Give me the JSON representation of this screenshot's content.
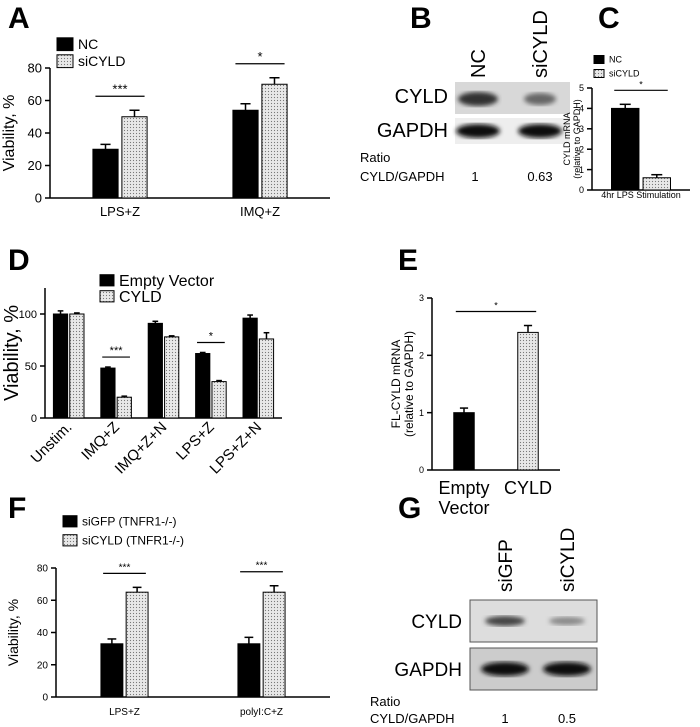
{
  "panel_labels": [
    "A",
    "B",
    "C",
    "D",
    "E",
    "F",
    "G"
  ],
  "chart_data": [
    {
      "type": "bar",
      "ylabel": "Viability, %",
      "categories": [
        "LPS+Z",
        "IMQ+Z"
      ],
      "series": [
        {
          "name": "NC",
          "color": "#000000",
          "values": [
            30,
            54
          ],
          "errors": [
            3,
            4
          ]
        },
        {
          "name": "siCYLD",
          "color": "#dddddd",
          "values": [
            50,
            70
          ],
          "errors": [
            4,
            4
          ]
        }
      ],
      "ylim": [
        0,
        80
      ],
      "yticks": [
        0,
        20,
        40,
        60,
        80
      ],
      "annotations": [
        "***",
        "*"
      ]
    },
    {
      "type": "bar",
      "ylabel": "CYLD mRNA (relative to GAPDH)",
      "categories": [
        "4hr LPS Stimulation"
      ],
      "series": [
        {
          "name": "NC",
          "color": "#000000",
          "values": [
            4.0
          ],
          "errors": [
            0.2
          ]
        },
        {
          "name": "siCYLD",
          "color": "#dddddd",
          "values": [
            0.6
          ],
          "errors": [
            0.15
          ]
        }
      ],
      "ylim": [
        0,
        5
      ],
      "yticks": [
        0,
        1,
        2,
        3,
        4,
        5
      ],
      "annotations": [
        "*"
      ]
    },
    {
      "type": "bar",
      "ylabel": "Viability, %",
      "categories": [
        "Unstim.",
        "IMQ+Z",
        "IMQ+Z+N",
        "LPS+Z",
        "LPS+Z+N"
      ],
      "series": [
        {
          "name": "Empty Vector",
          "color": "#000000",
          "values": [
            100,
            48,
            91,
            62,
            96
          ],
          "errors": [
            3,
            1,
            2,
            1,
            3
          ]
        },
        {
          "name": "CYLD",
          "color": "#dddddd",
          "values": [
            100,
            20,
            78,
            35,
            76
          ],
          "errors": [
            1,
            1,
            1,
            1,
            6
          ]
        }
      ],
      "ylim": [
        0,
        125
      ],
      "yticks": [
        0,
        50,
        100
      ],
      "annotations": [
        null,
        "***",
        null,
        "*",
        null
      ]
    },
    {
      "type": "bar",
      "ylabel": "FL-CYLD mRNA (relative to GAPDH)",
      "categories": [
        "Empty Vector",
        "CYLD"
      ],
      "series": [
        {
          "colors": [
            "#000000",
            "#dddddd"
          ],
          "values": [
            1.0,
            2.4
          ],
          "errors": [
            0.08,
            0.12
          ]
        }
      ],
      "ylim": [
        0,
        3
      ],
      "yticks": [
        0,
        1,
        2,
        3
      ],
      "annotations": [
        "*"
      ]
    },
    {
      "type": "bar",
      "ylabel": "Viability, %",
      "categories": [
        "LPS+Z",
        "polyI:C+Z"
      ],
      "series": [
        {
          "name": "siGFP (TNFR1-/-)",
          "color": "#000000",
          "values": [
            33,
            33
          ],
          "errors": [
            3,
            4
          ]
        },
        {
          "name": "siCYLD (TNFR1-/-)",
          "color": "#dddddd",
          "values": [
            65,
            65
          ],
          "errors": [
            3,
            4
          ]
        }
      ],
      "ylim": [
        0,
        80
      ],
      "yticks": [
        0,
        20,
        40,
        60,
        80
      ],
      "annotations": [
        "***",
        "***"
      ]
    }
  ],
  "blots": [
    {
      "lanes": [
        "NC",
        "siCYLD"
      ],
      "rows": [
        "CYLD",
        "GAPDH"
      ],
      "ratio_title": "Ratio",
      "ratio_name": "CYLD/GAPDH",
      "ratios": [
        1,
        0.63
      ]
    },
    {
      "lanes": [
        "siGFP",
        "siCYLD"
      ],
      "rows": [
        "CYLD",
        "GAPDH"
      ],
      "ratio_title": "Ratio",
      "ratio_name": "CYLD/GAPDH",
      "ratios": [
        1,
        0.5
      ]
    }
  ]
}
